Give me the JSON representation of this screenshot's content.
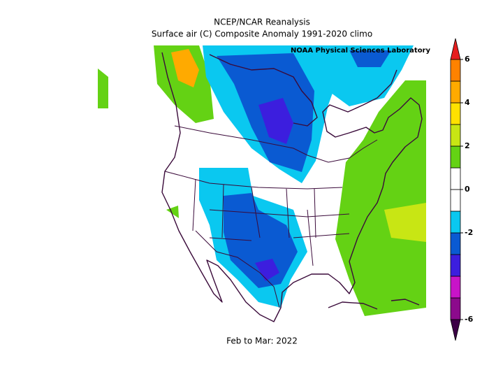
{
  "map": {
    "title": "NCEP/NCAR Reanalysis",
    "subtitle": "Surface air (C) Composite Anomaly 1991-2020 climo",
    "credit": "NOAA Physical Sciences Laboratory",
    "footer": "Feb to Mar: 2022",
    "colorbar": {
      "levels": [
        -6,
        -5,
        -4,
        -3,
        -2,
        -1,
        0,
        1,
        2,
        3,
        4,
        5,
        6
      ],
      "colors": [
        "#8c0a8c",
        "#c814c8",
        "#3c1ede",
        "#0a5ad2",
        "#0ac8f0",
        "#ffffff",
        "#ffffff",
        "#64d214",
        "#c8e614",
        "#ffe100",
        "#ffaa00",
        "#ff8200"
      ],
      "under_color": "#3c0046",
      "over_color": "#e61e1e",
      "ticks": [
        -6,
        -2,
        0,
        2,
        4,
        6
      ]
    }
  }
}
